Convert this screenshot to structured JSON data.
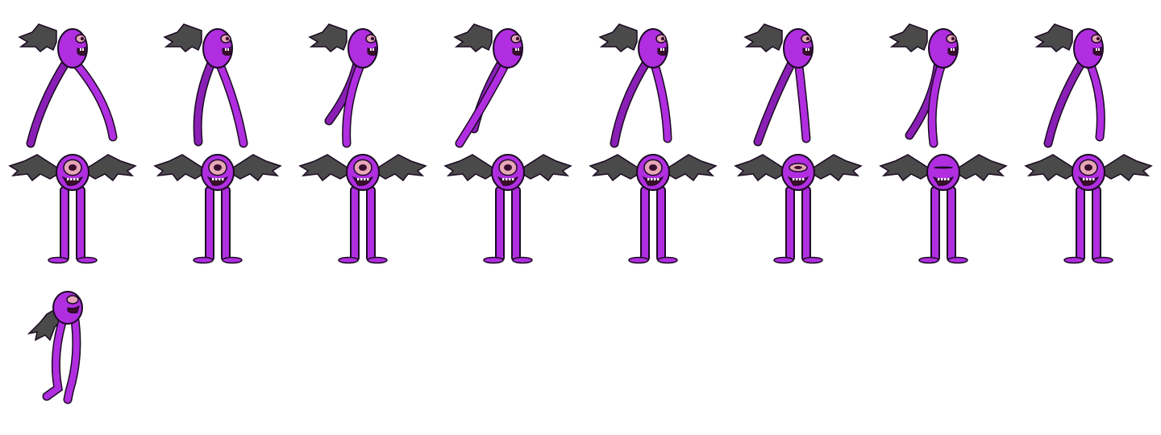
{
  "sheet": {
    "columns": 8,
    "rows": 3,
    "frame_count": 17,
    "colors": {
      "background": "#ffffff",
      "body": "#b02ee0",
      "body_shade": "#8a1fb5",
      "outline": "#1a0a22",
      "wing": "#4a4a4a",
      "wing_shade": "#2c2c2c",
      "eye_iris": "#e7a6b8",
      "eye_pupil": "#3a1030",
      "mouth": "#3a0f2a",
      "teeth": "#ffffff"
    }
  },
  "animations": [
    {
      "name": "walk-side",
      "facing": "right",
      "frames": 8
    },
    {
      "name": "idle-front-blink",
      "facing": "front",
      "frames": 8,
      "eye_open": [
        1,
        1,
        1,
        1,
        1,
        0.5,
        0,
        1
      ]
    },
    {
      "name": "fall-side",
      "facing": "right",
      "frames": 1
    }
  ]
}
